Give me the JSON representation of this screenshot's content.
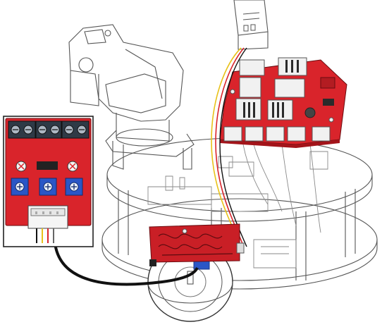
{
  "colors": {
    "board": "#d9242b",
    "board_edge": "#6a0c10",
    "wire_black": "#111111",
    "wire_yellow": "#e8c21a",
    "wire_red": "#d8242b",
    "line_art": "#555555",
    "inset_border": "#222222",
    "pot": "#2a56c6"
  },
  "icons": {
    "terminal_block": "screw-terminal-icon",
    "potentiometer": "trimmer-potentiometer-icon",
    "connector": "jst-connector-icon",
    "chip": "ic-chip-icon"
  },
  "inset": {
    "terminal_count": 6,
    "pot_count": 3
  }
}
